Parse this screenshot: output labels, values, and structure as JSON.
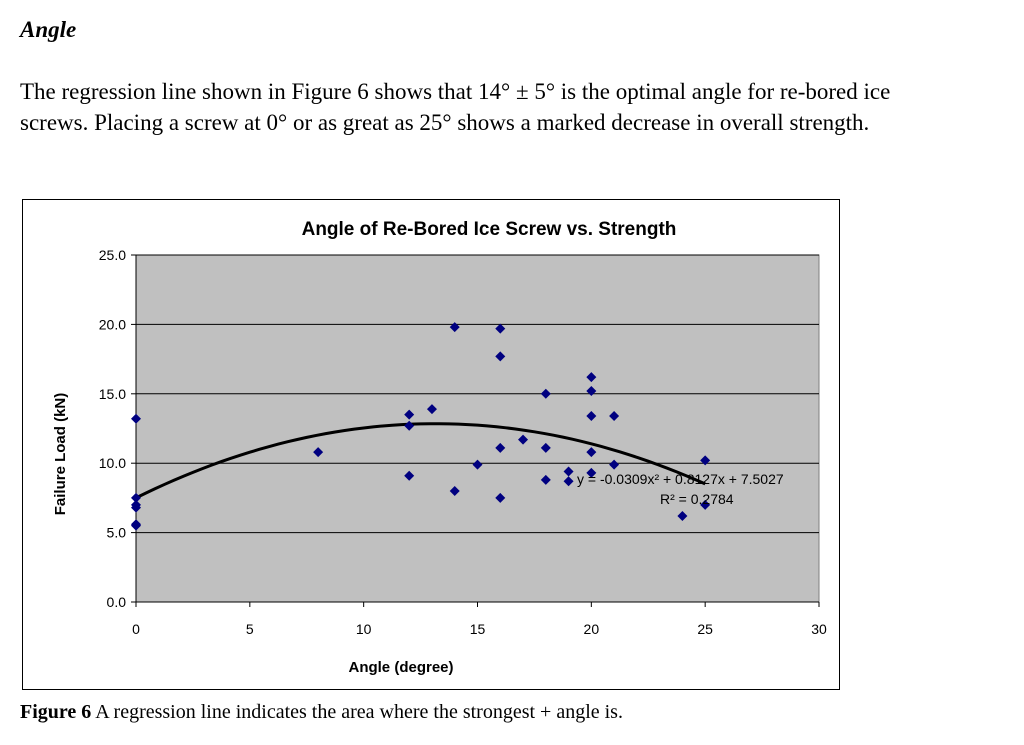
{
  "section": {
    "heading": "Angle",
    "paragraph": "The regression line shown in Figure 6 shows that 14° ± 5° is the optimal angle for re-bored ice screws. Placing a screw at 0° or as great as 25° shows a marked decrease in overall strength."
  },
  "figure": {
    "caption_label": "Figure 6",
    "caption_text": " A regression line indicates the area where the strongest + angle is."
  },
  "chart_data": {
    "type": "scatter",
    "title": "Angle of Re-Bored Ice Screw vs. Strength",
    "xlabel": "Angle (degree)",
    "ylabel": "Failure Load (kN)",
    "xlim": [
      0,
      30
    ],
    "ylim": [
      0,
      25
    ],
    "x_ticks": [
      "0",
      "5",
      "10",
      "15",
      "20",
      "25",
      "30"
    ],
    "y_ticks": [
      "0.0",
      "5.0",
      "10.0",
      "15.0",
      "20.0",
      "25.0"
    ],
    "grid": "horizontal",
    "plot_background": "#c0c0c0",
    "marker_color": "#000080",
    "points": [
      {
        "x": 0,
        "y": 13.2
      },
      {
        "x": 0,
        "y": 7.5
      },
      {
        "x": 0,
        "y": 7.0
      },
      {
        "x": 0,
        "y": 6.8
      },
      {
        "x": 0,
        "y": 5.6
      },
      {
        "x": 0,
        "y": 5.5
      },
      {
        "x": 8,
        "y": 10.8
      },
      {
        "x": 12,
        "y": 13.5
      },
      {
        "x": 12,
        "y": 12.7
      },
      {
        "x": 12,
        "y": 9.1
      },
      {
        "x": 13,
        "y": 13.9
      },
      {
        "x": 14,
        "y": 19.8
      },
      {
        "x": 14,
        "y": 8.0
      },
      {
        "x": 15,
        "y": 9.9
      },
      {
        "x": 16,
        "y": 19.7
      },
      {
        "x": 16,
        "y": 17.7
      },
      {
        "x": 16,
        "y": 11.1
      },
      {
        "x": 16,
        "y": 7.5
      },
      {
        "x": 17,
        "y": 11.7
      },
      {
        "x": 18,
        "y": 15.0
      },
      {
        "x": 18,
        "y": 11.1
      },
      {
        "x": 18,
        "y": 8.8
      },
      {
        "x": 19,
        "y": 9.4
      },
      {
        "x": 19,
        "y": 8.7
      },
      {
        "x": 20,
        "y": 16.2
      },
      {
        "x": 20,
        "y": 15.2
      },
      {
        "x": 20,
        "y": 13.4
      },
      {
        "x": 20,
        "y": 10.8
      },
      {
        "x": 20,
        "y": 9.3
      },
      {
        "x": 21,
        "y": 13.4
      },
      {
        "x": 21,
        "y": 9.9
      },
      {
        "x": 24,
        "y": 6.2
      },
      {
        "x": 25,
        "y": 10.2
      },
      {
        "x": 25,
        "y": 7.0
      }
    ],
    "trendline": {
      "type": "polynomial",
      "a": -0.0309,
      "b": 0.8127,
      "c": 7.5027,
      "x_range": [
        0,
        25
      ],
      "equation": "y = -0.0309x² + 0.8127x + 7.5027",
      "r_squared": "R² = 0.2784"
    }
  }
}
